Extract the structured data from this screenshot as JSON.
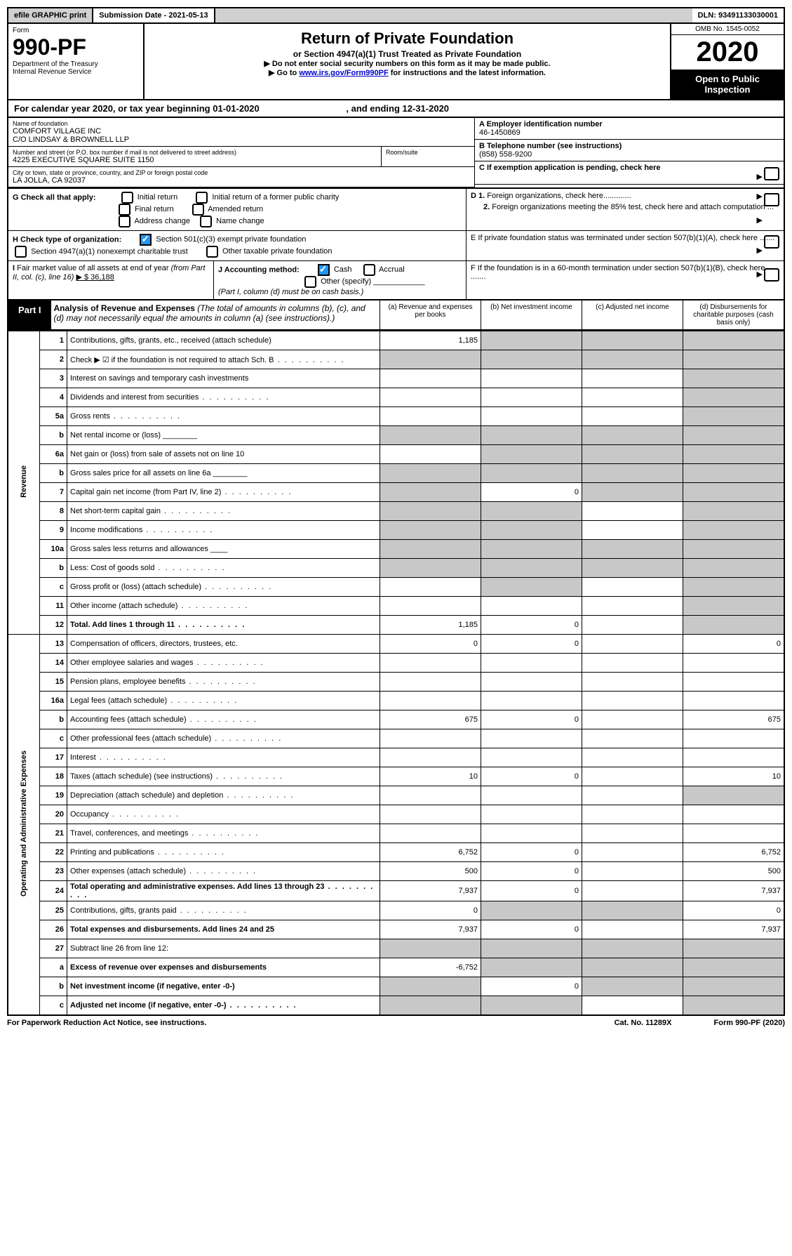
{
  "topbar": {
    "efile": "efile GRAPHIC print",
    "subdate_label": "Submission Date - 2021-05-13",
    "dln": "DLN: 93491133030001"
  },
  "header": {
    "form_word": "Form",
    "form_num": "990-PF",
    "dept": "Department of the Treasury",
    "irs": "Internal Revenue Service",
    "title": "Return of Private Foundation",
    "subtitle": "or Section 4947(a)(1) Trust Treated as Private Foundation",
    "instr1": "▶ Do not enter social security numbers on this form as it may be made public.",
    "instr2_pre": "▶ Go to ",
    "instr2_link": "www.irs.gov/Form990PF",
    "instr2_post": " for instructions and the latest information.",
    "omb": "OMB No. 1545-0052",
    "year": "2020",
    "open": "Open to Public Inspection"
  },
  "calyear": {
    "text_pre": "For calendar year 2020, or tax year beginning ",
    "begin": "01-01-2020",
    "mid": " , and ending ",
    "end": "12-31-2020"
  },
  "info": {
    "name_lbl": "Name of foundation",
    "name1": "COMFORT VILLAGE INC",
    "name2": "C/O LINDSAY & BROWNELL LLP",
    "addr_lbl": "Number and street (or P.O. box number if mail is not delivered to street address)",
    "addr": "4225 EXECUTIVE SQUARE SUITE 1150",
    "room_lbl": "Room/suite",
    "city_lbl": "City or town, state or province, country, and ZIP or foreign postal code",
    "city": "LA JOLLA, CA  92037",
    "a_lbl": "A Employer identification number",
    "a_val": "46-1450869",
    "b_lbl": "B Telephone number (see instructions)",
    "b_val": "(858) 558-9200",
    "c_lbl": "C If exemption application is pending, check here",
    "d1": "D 1. Foreign organizations, check here.............",
    "d2": "2. Foreign organizations meeting the 85% test, check here and attach computation ...",
    "e": "E  If private foundation status was terminated under section 507(b)(1)(A), check here .......",
    "f": "F  If the foundation is in a 60-month termination under section 507(b)(1)(B), check here ......."
  },
  "g": {
    "label": "G Check all that apply:",
    "opts": [
      "Initial return",
      "Initial return of a former public charity",
      "Final return",
      "Amended return",
      "Address change",
      "Name change"
    ]
  },
  "h": {
    "label": "H Check type of organization:",
    "o1": "Section 501(c)(3) exempt private foundation",
    "o2": "Section 4947(a)(1) nonexempt charitable trust",
    "o3": "Other taxable private foundation"
  },
  "i": {
    "label": "I Fair market value of all assets at end of year (from Part II, col. (c), line 16)",
    "val": "▶ $  36,188"
  },
  "j": {
    "label": "J Accounting method:",
    "cash": "Cash",
    "accrual": "Accrual",
    "other": "Other (specify)",
    "note": "(Part I, column (d) must be on cash basis.)"
  },
  "part1": {
    "tag": "Part I",
    "title": "Analysis of Revenue and Expenses",
    "note": "(The total of amounts in columns (b), (c), and (d) may not necessarily equal the amounts in column (a) (see instructions).)",
    "col_a": "(a)   Revenue and expenses per books",
    "col_b": "(b)  Net investment income",
    "col_c": "(c)  Adjusted net income",
    "col_d": "(d)  Disbursements for charitable purposes (cash basis only)"
  },
  "sections": {
    "revenue": "Revenue",
    "expenses": "Operating and Administrative Expenses"
  },
  "rows": [
    {
      "n": "1",
      "d": "Contributions, gifts, grants, etc., received (attach schedule)",
      "a": "1,185",
      "b": "g",
      "c": "g",
      "dd": "g"
    },
    {
      "n": "2",
      "d": "Check ▶ ☑ if the foundation is not required to attach Sch. B",
      "a": "g",
      "b": "g",
      "c": "g",
      "dd": "g",
      "dots": true
    },
    {
      "n": "3",
      "d": "Interest on savings and temporary cash investments",
      "a": "",
      "b": "",
      "c": "",
      "dd": "g"
    },
    {
      "n": "4",
      "d": "Dividends and interest from securities",
      "a": "",
      "b": "",
      "c": "",
      "dd": "g",
      "dots": true
    },
    {
      "n": "5a",
      "d": "Gross rents",
      "a": "",
      "b": "",
      "c": "",
      "dd": "g",
      "dots": true
    },
    {
      "n": "b",
      "d": "Net rental income or (loss)  ________",
      "a": "g",
      "b": "g",
      "c": "g",
      "dd": "g"
    },
    {
      "n": "6a",
      "d": "Net gain or (loss) from sale of assets not on line 10",
      "a": "",
      "b": "g",
      "c": "g",
      "dd": "g"
    },
    {
      "n": "b",
      "d": "Gross sales price for all assets on line 6a  ________",
      "a": "g",
      "b": "g",
      "c": "g",
      "dd": "g"
    },
    {
      "n": "7",
      "d": "Capital gain net income (from Part IV, line 2)",
      "a": "g",
      "b": "0",
      "c": "g",
      "dd": "g",
      "dots": true
    },
    {
      "n": "8",
      "d": "Net short-term capital gain",
      "a": "g",
      "b": "g",
      "c": "",
      "dd": "g",
      "dots": true
    },
    {
      "n": "9",
      "d": "Income modifications",
      "a": "g",
      "b": "g",
      "c": "",
      "dd": "g",
      "dots": true
    },
    {
      "n": "10a",
      "d": "Gross sales less returns and allowances  ____",
      "a": "g",
      "b": "g",
      "c": "g",
      "dd": "g"
    },
    {
      "n": "b",
      "d": "Less: Cost of goods sold",
      "a": "g",
      "b": "g",
      "c": "g",
      "dd": "g",
      "dots": true
    },
    {
      "n": "c",
      "d": "Gross profit or (loss) (attach schedule)",
      "a": "",
      "b": "g",
      "c": "",
      "dd": "g",
      "dots": true
    },
    {
      "n": "11",
      "d": "Other income (attach schedule)",
      "a": "",
      "b": "",
      "c": "",
      "dd": "g",
      "dots": true
    },
    {
      "n": "12",
      "d": "Total. Add lines 1 through 11",
      "a": "1,185",
      "b": "0",
      "c": "",
      "dd": "g",
      "bold": true,
      "dots": true
    }
  ],
  "exprows": [
    {
      "n": "13",
      "d": "Compensation of officers, directors, trustees, etc.",
      "a": "0",
      "b": "0",
      "c": "",
      "dd": "0"
    },
    {
      "n": "14",
      "d": "Other employee salaries and wages",
      "a": "",
      "b": "",
      "c": "",
      "dd": "",
      "dots": true
    },
    {
      "n": "15",
      "d": "Pension plans, employee benefits",
      "a": "",
      "b": "",
      "c": "",
      "dd": "",
      "dots": true
    },
    {
      "n": "16a",
      "d": "Legal fees (attach schedule)",
      "a": "",
      "b": "",
      "c": "",
      "dd": "",
      "dots": true
    },
    {
      "n": "b",
      "d": "Accounting fees (attach schedule)",
      "a": "675",
      "b": "0",
      "c": "",
      "dd": "675",
      "dots": true
    },
    {
      "n": "c",
      "d": "Other professional fees (attach schedule)",
      "a": "",
      "b": "",
      "c": "",
      "dd": "",
      "dots": true
    },
    {
      "n": "17",
      "d": "Interest",
      "a": "",
      "b": "",
      "c": "",
      "dd": "",
      "dots": true
    },
    {
      "n": "18",
      "d": "Taxes (attach schedule) (see instructions)",
      "a": "10",
      "b": "0",
      "c": "",
      "dd": "10",
      "dots": true
    },
    {
      "n": "19",
      "d": "Depreciation (attach schedule) and depletion",
      "a": "",
      "b": "",
      "c": "",
      "dd": "g",
      "dots": true
    },
    {
      "n": "20",
      "d": "Occupancy",
      "a": "",
      "b": "",
      "c": "",
      "dd": "",
      "dots": true
    },
    {
      "n": "21",
      "d": "Travel, conferences, and meetings",
      "a": "",
      "b": "",
      "c": "",
      "dd": "",
      "dots": true
    },
    {
      "n": "22",
      "d": "Printing and publications",
      "a": "6,752",
      "b": "0",
      "c": "",
      "dd": "6,752",
      "dots": true
    },
    {
      "n": "23",
      "d": "Other expenses (attach schedule)",
      "a": "500",
      "b": "0",
      "c": "",
      "dd": "500",
      "dots": true
    },
    {
      "n": "24",
      "d": "Total operating and administrative expenses. Add lines 13 through 23",
      "a": "7,937",
      "b": "0",
      "c": "",
      "dd": "7,937",
      "bold": true,
      "dots": true
    },
    {
      "n": "25",
      "d": "Contributions, gifts, grants paid",
      "a": "0",
      "b": "g",
      "c": "g",
      "dd": "0",
      "dots": true
    },
    {
      "n": "26",
      "d": "Total expenses and disbursements. Add lines 24 and 25",
      "a": "7,937",
      "b": "0",
      "c": "",
      "dd": "7,937",
      "bold": true
    }
  ],
  "row27": [
    {
      "n": "27",
      "d": "Subtract line 26 from line 12:",
      "a": "g",
      "b": "g",
      "c": "g",
      "dd": "g"
    },
    {
      "n": "a",
      "d": "Excess of revenue over expenses and disbursements",
      "a": "-6,752",
      "b": "g",
      "c": "g",
      "dd": "g",
      "bold": true
    },
    {
      "n": "b",
      "d": "Net investment income (if negative, enter -0-)",
      "a": "g",
      "b": "0",
      "c": "g",
      "dd": "g",
      "bold": true
    },
    {
      "n": "c",
      "d": "Adjusted net income (if negative, enter -0-)",
      "a": "g",
      "b": "g",
      "c": "",
      "dd": "g",
      "bold": true,
      "dots": true
    }
  ],
  "footer": {
    "pra": "For Paperwork Reduction Act Notice, see instructions.",
    "cat": "Cat. No. 11289X",
    "form": "Form 990-PF (2020)"
  }
}
